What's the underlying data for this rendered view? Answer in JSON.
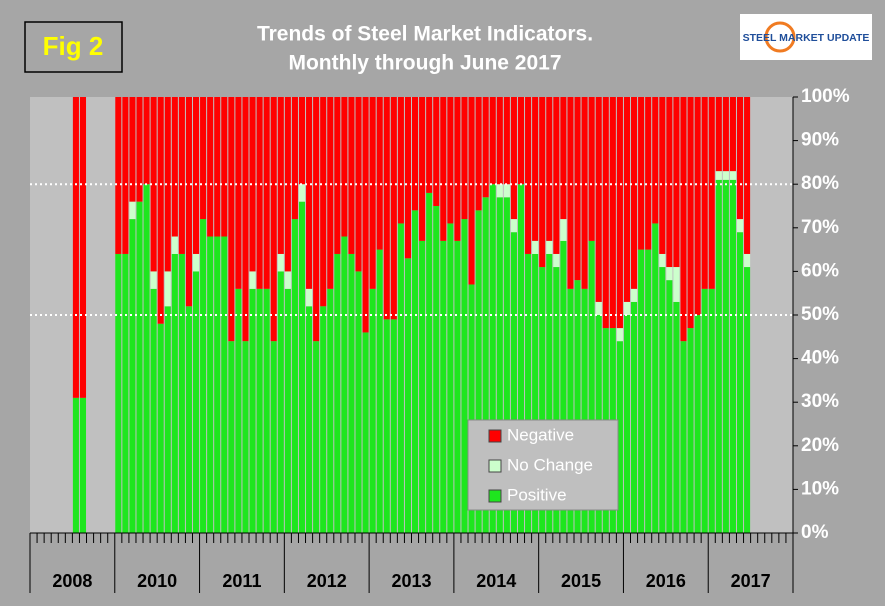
{
  "chart_data": {
    "type": "stacked_bar_100",
    "fig_label": "Fig 2",
    "title": "Trends of Steel Market Indicators.",
    "subtitle": "Monthly through  June 2017",
    "logo": "STEEL MARKET UPDATE",
    "categories": [
      null,
      null,
      null,
      null,
      null,
      null,
      null,
      null,
      null,
      null,
      null,
      null,
      null,
      null,
      null,
      null,
      null,
      null,
      null,
      null,
      null,
      null,
      null,
      null,
      null,
      null,
      null,
      null,
      null,
      null,
      null,
      null,
      null,
      null,
      null,
      null,
      null,
      null,
      null,
      null,
      null,
      null,
      null,
      null,
      null,
      null,
      null,
      null,
      null,
      null,
      null,
      null,
      null,
      null,
      null,
      null,
      null,
      null,
      null,
      null,
      null,
      null,
      null,
      null,
      null,
      null,
      null,
      null,
      null,
      null,
      null,
      null,
      null,
      null,
      null,
      null,
      null,
      null,
      null,
      null,
      null,
      null,
      null,
      null,
      null,
      null,
      null,
      null,
      null,
      null,
      null,
      null,
      null,
      null,
      null,
      null,
      null,
      null,
      null,
      null,
      null,
      null,
      null,
      null,
      null,
      null,
      null,
      null
    ],
    "year_labels": [
      "2008",
      "2010",
      "2011",
      "2012",
      "2013",
      "2014",
      "2015",
      "2016",
      "2017"
    ],
    "series": [
      {
        "name": "Positive",
        "color": "#1ee61e",
        "values": [
          null,
          null,
          null,
          null,
          null,
          null,
          31,
          31,
          null,
          null,
          null,
          null,
          64,
          64,
          72,
          76,
          80,
          56,
          48,
          52,
          64,
          64,
          52,
          60,
          72,
          68,
          68,
          68,
          44,
          56,
          44,
          56,
          56,
          56,
          44,
          60,
          56,
          72,
          76,
          52,
          44,
          52,
          56,
          64,
          68,
          64,
          60,
          46,
          56,
          65,
          49,
          49,
          71,
          63,
          74,
          67,
          78,
          75,
          67,
          71,
          67,
          72,
          57,
          74,
          77,
          80,
          77,
          77,
          69,
          80,
          64,
          64,
          61,
          64,
          61,
          67,
          56,
          58,
          56,
          67,
          50,
          47,
          47,
          44,
          50,
          53,
          65,
          65,
          71,
          61,
          58,
          53,
          44,
          47,
          50,
          56,
          56,
          81,
          81,
          81,
          69,
          61,
          null,
          null,
          null,
          null,
          null,
          null
        ]
      },
      {
        "name": "No Change",
        "color": "#ccffcc",
        "values": [
          null,
          null,
          null,
          null,
          null,
          null,
          0,
          0,
          null,
          null,
          null,
          null,
          0,
          0,
          4,
          0,
          0,
          4,
          0,
          8,
          4,
          0,
          0,
          4,
          0,
          0,
          0,
          0,
          0,
          0,
          0,
          4,
          0,
          0,
          0,
          4,
          4,
          0,
          4,
          4,
          0,
          0,
          0,
          0,
          0,
          0,
          0,
          0,
          0,
          0,
          0,
          0,
          0,
          0,
          0,
          0,
          0,
          0,
          0,
          0,
          0,
          0,
          0,
          0,
          0,
          0,
          3,
          3,
          3,
          0,
          0,
          3,
          0,
          3,
          3,
          5,
          0,
          0,
          0,
          0,
          3,
          0,
          0,
          3,
          3,
          3,
          0,
          0,
          0,
          3,
          3,
          8,
          0,
          0,
          0,
          0,
          0,
          2,
          2,
          2,
          3,
          3,
          null,
          null,
          null,
          null,
          null,
          null
        ]
      },
      {
        "name": "Negative",
        "color": "#ff0000",
        "values": [
          null,
          null,
          null,
          null,
          null,
          null,
          69,
          69,
          null,
          null,
          null,
          null,
          36,
          36,
          24,
          24,
          20,
          40,
          52,
          40,
          32,
          36,
          48,
          36,
          28,
          32,
          32,
          32,
          56,
          44,
          56,
          40,
          44,
          44,
          56,
          36,
          40,
          28,
          20,
          44,
          56,
          48,
          44,
          36,
          32,
          36,
          40,
          54,
          44,
          35,
          51,
          51,
          29,
          37,
          26,
          33,
          22,
          25,
          33,
          29,
          33,
          28,
          43,
          26,
          23,
          20,
          20,
          20,
          28,
          20,
          36,
          33,
          39,
          33,
          36,
          28,
          44,
          42,
          44,
          33,
          47,
          53,
          53,
          53,
          47,
          44,
          35,
          35,
          29,
          36,
          39,
          39,
          56,
          53,
          50,
          44,
          44,
          17,
          17,
          17,
          28,
          36,
          null,
          null,
          null,
          null,
          null,
          null
        ]
      }
    ],
    "ylim": [
      0,
      100
    ],
    "yticks": [
      {
        "value": 0,
        "label": "0%"
      },
      {
        "value": 10,
        "label": "10%"
      },
      {
        "value": 20,
        "label": "20%"
      },
      {
        "value": 30,
        "label": "30%"
      },
      {
        "value": 40,
        "label": "40%"
      },
      {
        "value": 50,
        "label": "50%"
      },
      {
        "value": 60,
        "label": "60%"
      },
      {
        "value": 70,
        "label": "70%"
      },
      {
        "value": 80,
        "label": "80%"
      },
      {
        "value": 90,
        "label": "90%"
      },
      {
        "value": 100,
        "label": "100%"
      }
    ],
    "reference_lines": [
      50,
      80
    ],
    "legend_order": [
      2,
      1,
      0
    ]
  }
}
